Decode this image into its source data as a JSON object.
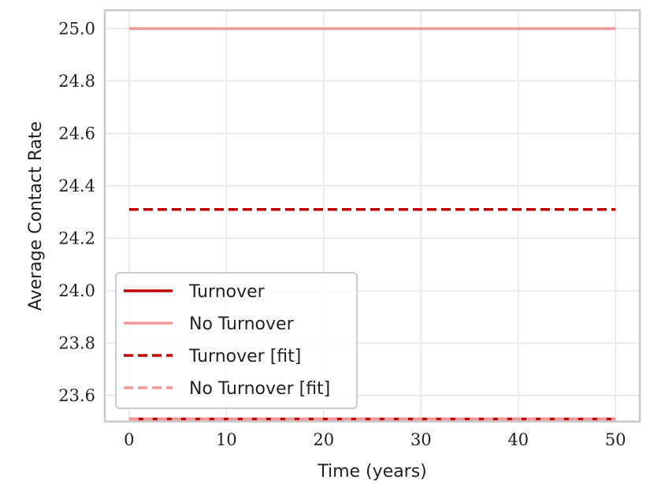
{
  "chart_data": {
    "type": "line",
    "title": "",
    "xlabel": "Time (years)",
    "ylabel": "Average Contact Rate",
    "xlim": [
      -2.5,
      52.5
    ],
    "ylim": [
      23.5,
      25.07
    ],
    "xticks": [
      0,
      10,
      20,
      30,
      40,
      50
    ],
    "xtick_labels": [
      "0",
      "10",
      "20",
      "30",
      "40",
      "50"
    ],
    "yticks": [
      23.6,
      23.8,
      24.0,
      24.2,
      24.4,
      24.6,
      24.8,
      25.0
    ],
    "ytick_labels": [
      "23.6",
      "23.8",
      "24.0",
      "24.2",
      "24.4",
      "24.6",
      "24.8",
      "25.0"
    ],
    "grid": true,
    "legend_position": "lower-left",
    "series": [
      {
        "name": "Turnover",
        "color": "#c00000",
        "style": "solid",
        "x": [
          0,
          50
        ],
        "y": [
          23.51,
          23.51
        ]
      },
      {
        "name": "No Turnover",
        "color": "#f4999a",
        "style": "solid",
        "x": [
          0,
          50
        ],
        "y": [
          25.0,
          25.0
        ]
      },
      {
        "name": "Turnover [fit]",
        "color": "#c00000",
        "style": "dashed",
        "x": [
          0,
          50
        ],
        "y": [
          24.31,
          24.31
        ]
      },
      {
        "name": "No Turnover [fit]",
        "color": "#f4999a",
        "style": "dashed",
        "x": [
          0,
          50
        ],
        "y": [
          23.51,
          23.51
        ]
      }
    ]
  }
}
